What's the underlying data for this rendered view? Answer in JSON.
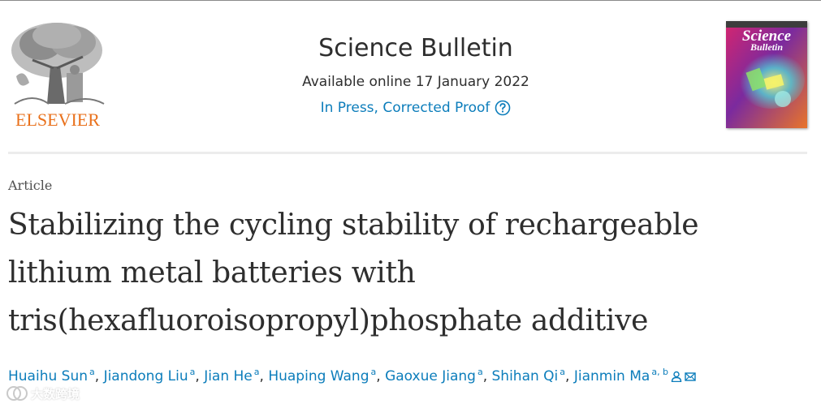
{
  "header": {
    "publisher_logo_text": "ELSEVIER",
    "journal_title": "Science Bulletin",
    "available_online": "Available online 17 January 2022",
    "status_link": "In Press, Corrected Proof",
    "cover_text_line1": "Science",
    "cover_text_line2": "Bulletin"
  },
  "article": {
    "type": "Article",
    "title_line1": "Stabilizing the cycling stability of rechargeable",
    "title_line2": "lithium metal batteries with",
    "title_line3": "tris(hexafluoroisopropyl)phosphate additive"
  },
  "authors": [
    {
      "name": "Huaihu Sun",
      "aff": "a"
    },
    {
      "name": "Jiandong Liu",
      "aff": "a"
    },
    {
      "name": "Jian He",
      "aff": "a"
    },
    {
      "name": "Huaping Wang",
      "aff": "a"
    },
    {
      "name": "Gaoxue Jiang",
      "aff": "a"
    },
    {
      "name": "Shihan Qi",
      "aff": "a"
    },
    {
      "name": "Jianmin Ma",
      "aff": "a, b"
    }
  ],
  "watermark": {
    "text": "大数跨境"
  },
  "colors": {
    "link": "#0c7dbb",
    "text": "#2e2e2e",
    "publisher_orange": "#e9711c"
  },
  "icons": {
    "help": "question-circle-icon",
    "person": "person-icon",
    "email": "envelope-icon"
  }
}
